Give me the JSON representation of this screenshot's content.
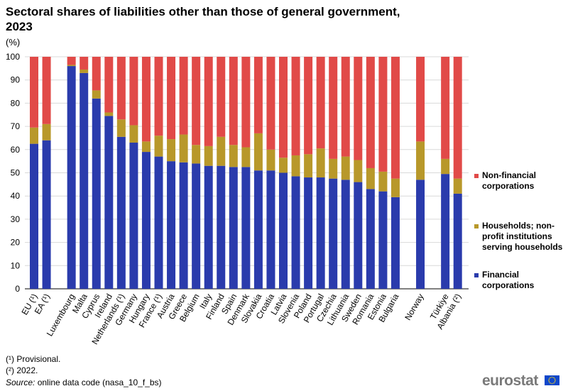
{
  "title": "Sectoral shares of liabilities other than those of general government, 2023",
  "unit": "(%)",
  "colors": {
    "financial": "#2a3bac",
    "households": "#b8982a",
    "nonfinancial": "#e14a48"
  },
  "legend": {
    "nonfinancial": "Non-financial corporations",
    "households": "Households; non-profit institutions serving households",
    "financial": "Financial corporations"
  },
  "footnotes": {
    "provisional": "(¹) Provisional.",
    "year2022": "(²) 2022."
  },
  "source": {
    "label": "Source:",
    "text": " online data code (nasa_10_f_bs)"
  },
  "logo": {
    "text": "eurostat",
    "icon": "eu-flag-icon"
  },
  "chart_data": {
    "type": "bar",
    "stacked": true,
    "title": "Sectoral shares of liabilities other than those of general government, 2023",
    "ylabel": "(%)",
    "ylim": [
      0,
      100
    ],
    "yticks": [
      0,
      10,
      20,
      30,
      40,
      50,
      60,
      70,
      80,
      90,
      100
    ],
    "categories": [
      "EU (¹)",
      "EA (¹)",
      "Luxembourg",
      "Malta",
      "Cyprus",
      "Ireland",
      "Netherlands (¹)",
      "Germany",
      "Hungary",
      "France (¹)",
      "Austria",
      "Greece",
      "Belgium",
      "Italy",
      "Finland",
      "Spain",
      "Denmark",
      "Slovakia",
      "Croatia",
      "Latvia",
      "Slovenia",
      "Poland",
      "Portugal",
      "Czechia",
      "Lithuania",
      "Sweden",
      "Romania",
      "Estonia",
      "Bulgaria",
      "Norway",
      "Türkiye",
      "Albania (²)"
    ],
    "series": [
      {
        "name": "Financial corporations",
        "values": [
          62.5,
          64,
          96,
          93,
          82,
          74.5,
          65.5,
          63,
          59,
          57,
          55,
          54.5,
          54,
          53,
          53,
          52.5,
          52.5,
          51,
          51,
          50,
          48.5,
          48,
          48,
          47.5,
          47,
          46,
          43,
          42,
          39.5,
          47,
          49.5,
          41
        ]
      },
      {
        "name": "Households; non-profit institutions serving households",
        "values": [
          7,
          7,
          0.5,
          1.5,
          3.5,
          1.5,
          7.5,
          7.5,
          4.5,
          9,
          9.5,
          12,
          8,
          8.5,
          12.5,
          9.5,
          8.5,
          16,
          9,
          6.5,
          9,
          10,
          12.5,
          8.5,
          10,
          9.5,
          9,
          8.5,
          8,
          16.5,
          6.5,
          6.5
        ]
      },
      {
        "name": "Non-financial corporations",
        "values": [
          30.5,
          29,
          3.5,
          5.5,
          14.5,
          24,
          27,
          29.5,
          36.5,
          34,
          35.5,
          33.5,
          38,
          38.5,
          34.5,
          38,
          39,
          33,
          40,
          43.5,
          42.5,
          42,
          39.5,
          44,
          43,
          44.5,
          48,
          49.5,
          52.5,
          36.5,
          44,
          52.5
        ]
      }
    ]
  }
}
